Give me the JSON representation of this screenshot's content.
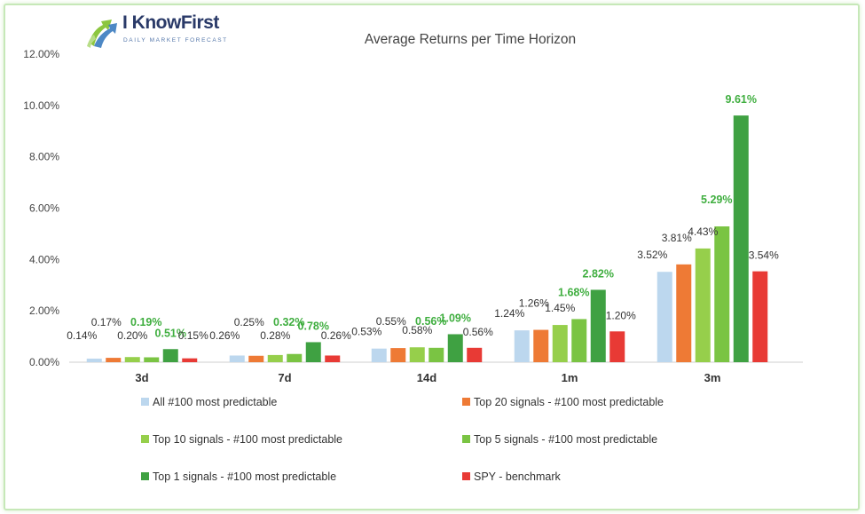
{
  "brand": {
    "name": "I KnowFirst",
    "tagline": "DAILY MARKET FORECAST"
  },
  "chart_data": {
    "type": "bar",
    "title": "Average Returns per Time Horizon",
    "xlabel": "",
    "ylabel": "",
    "ylim": [
      0,
      12
    ],
    "yticks": [
      "0.00%",
      "2.00%",
      "4.00%",
      "6.00%",
      "8.00%",
      "10.00%",
      "12.00%"
    ],
    "categories": [
      "3d",
      "7d",
      "14d",
      "1m",
      "3m"
    ],
    "grid": false,
    "legend_position": "bottom",
    "series": [
      {
        "name": "All #100 most predictable",
        "color": "#bcd7ee",
        "values": [
          0.14,
          0.26,
          0.53,
          1.24,
          3.52
        ],
        "labels": [
          "0.14%",
          "0.26%",
          "0.53%",
          "1.24%",
          "3.52%"
        ]
      },
      {
        "name": "Top 20 signals - #100 most predictable",
        "color": "#ee7a35",
        "values": [
          0.17,
          0.25,
          0.55,
          1.26,
          3.81
        ],
        "labels": [
          "0.17%",
          "0.25%",
          "0.55%",
          "1.26%",
          "3.81%"
        ]
      },
      {
        "name": "Top 10 signals - #100 most predictable",
        "color": "#96cf4b",
        "values": [
          0.2,
          0.28,
          0.58,
          1.45,
          4.43
        ],
        "labels": [
          "0.20%",
          "0.28%",
          "0.58%",
          "1.45%",
          "4.43%"
        ]
      },
      {
        "name": "Top 5 signals - #100 most predictable",
        "color": "#7ac443",
        "values": [
          0.19,
          0.32,
          0.56,
          1.68,
          5.29
        ],
        "labels": [
          "0.19%",
          "0.32%",
          "0.56%",
          "1.68%",
          "5.29%"
        ]
      },
      {
        "name": "Top 1 signals - #100 most predictable",
        "color": "#3fa142",
        "values": [
          0.51,
          0.78,
          1.09,
          2.82,
          9.61
        ],
        "labels": [
          "0.51%",
          "0.78%",
          "1.09%",
          "2.82%",
          "9.61%"
        ]
      },
      {
        "name": "SPY - benchmark",
        "color": "#e83a35",
        "values": [
          0.15,
          0.26,
          0.56,
          1.2,
          3.54
        ],
        "labels": [
          "0.15%",
          "0.26%",
          "0.56%",
          "1.20%",
          "3.54%"
        ]
      }
    ]
  }
}
